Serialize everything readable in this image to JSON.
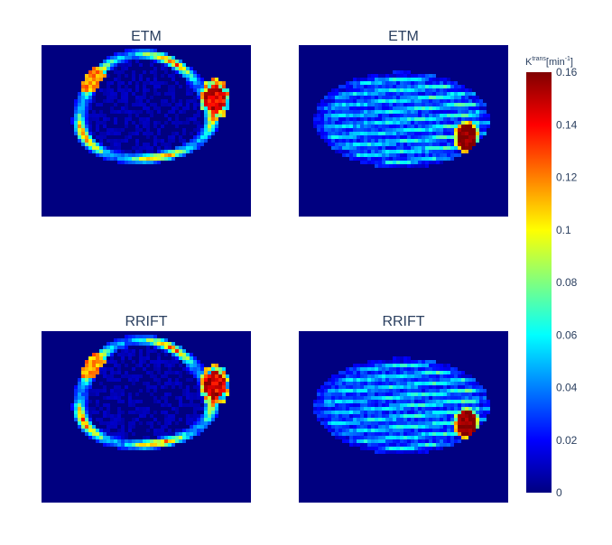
{
  "chart_data": {
    "type": "heatmap",
    "panels": [
      {
        "title": "ETM",
        "view": "ring"
      },
      {
        "title": "ETM",
        "view": "tumor"
      },
      {
        "title": "RRIFT",
        "view": "ring"
      },
      {
        "title": "RRIFT",
        "view": "tumor"
      }
    ],
    "colorscale": "Jet",
    "colorbar": {
      "title": {
        "base": "K",
        "sup": "trans",
        "unit_open": "[min",
        "unit_sup": "-1",
        "unit_close": "]"
      },
      "range": [
        0,
        0.16
      ],
      "ticks": [
        0,
        0.02,
        0.04,
        0.06,
        0.08,
        0.1,
        0.12,
        0.14,
        0.16
      ],
      "tick_labels": [
        "0",
        "0.02",
        "0.04",
        "0.06",
        "0.08",
        "0.1",
        "0.12",
        "0.14",
        "0.16"
      ]
    },
    "background_value": 0
  }
}
